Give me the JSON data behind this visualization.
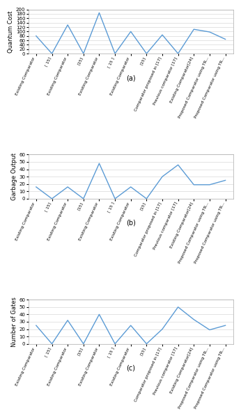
{
  "categories": [
    "Existing Comparator",
    "[ 15]",
    "Existing Comparator",
    "[15]",
    "Existing Comparator",
    "[ 15 ]",
    "Existing Comparator",
    "[15]",
    "Comparator proposed in [17]",
    "Previous comparator [17]",
    "Existing Comparator[24]",
    "Proposed Comparator using TR...",
    "Proposed Comparator using TR..."
  ],
  "quantum_cost": [
    80,
    0,
    130,
    0,
    185,
    0,
    100,
    0,
    85,
    0,
    110,
    98,
    65
  ],
  "garbage_output": [
    16,
    0,
    16,
    0,
    48,
    0,
    16,
    0,
    30,
    46,
    19,
    19,
    25
  ],
  "num_gates": [
    25,
    0,
    32,
    0,
    40,
    0,
    25,
    0,
    20,
    50,
    33,
    19,
    25
  ],
  "ylabel_a": "Quantum Cost",
  "ylabel_b": "Garbage Output",
  "ylabel_c": "Number of Gates",
  "label_a": "(a)",
  "label_b": "(b)",
  "label_c": "(c)",
  "line_color": "#5b9bd5",
  "bg_color": "#ffffff",
  "grid_color": "#d9d9d9",
  "ylim_a": [
    0,
    200
  ],
  "ylim_b": [
    0,
    60
  ],
  "ylim_c": [
    0,
    60
  ],
  "yticks_a": [
    0,
    20,
    40,
    60,
    80,
    100,
    120,
    140,
    160,
    180,
    200
  ],
  "yticks_b": [
    0,
    10,
    20,
    30,
    40,
    50,
    60
  ],
  "yticks_c": [
    0,
    10,
    20,
    30,
    40,
    50,
    60
  ]
}
